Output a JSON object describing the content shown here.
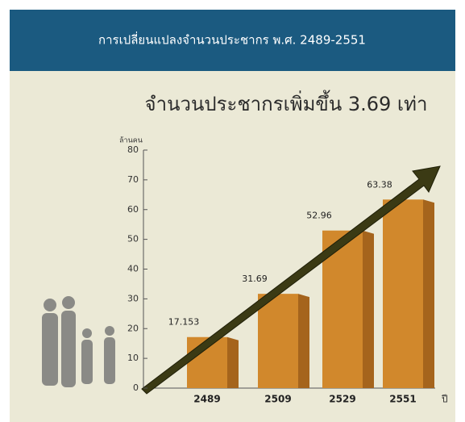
{
  "header": {
    "title": "การเปลี่ยนแปลงจำนวนประชากร พ.ศ. 2489-2551"
  },
  "chart_data": {
    "type": "bar",
    "title": "จำนวนประชากรเพิ่มขึ้น 3.69 เท่า",
    "y_label": "ล้านคน",
    "x_label": "ปี",
    "categories": [
      "2489",
      "2509",
      "2529",
      "2551"
    ],
    "values": [
      17.153,
      31.69,
      52.96,
      63.38
    ],
    "color": "#d1882c",
    "ylim": [
      0,
      80
    ],
    "yticks": [
      0,
      10,
      20,
      30,
      40,
      50,
      60,
      70,
      80
    ]
  }
}
